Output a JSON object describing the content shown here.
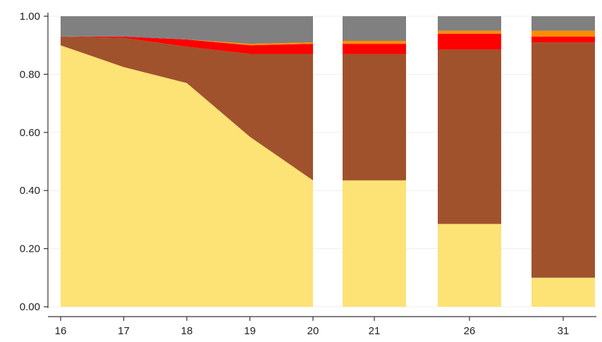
{
  "chart_data": {
    "type": "area",
    "ylim": [
      0,
      1
    ],
    "yticks": [
      0,
      0.2,
      0.4,
      0.6,
      0.8,
      1.0
    ],
    "ytick_labels": [
      "0.00",
      "0.20",
      "0.40",
      "0.60",
      "0.80",
      "1.00"
    ],
    "xlabel": "",
    "ylabel": "",
    "grid": true,
    "series_colors": [
      "#FDE275",
      "#A0522D",
      "#FF0000",
      "#FF8C00",
      "#808080"
    ],
    "area_panel": {
      "x": [
        16,
        17,
        18,
        19,
        20
      ],
      "x_labels": [
        "16",
        "17",
        "18",
        "19",
        "20"
      ],
      "stacks": [
        [
          0.9,
          0.825,
          0.77,
          0.585,
          0.435
        ],
        [
          0.03,
          0.1,
          0.125,
          0.285,
          0.435
        ],
        [
          0.0,
          0.005,
          0.025,
          0.03,
          0.035
        ],
        [
          0.0,
          0.0,
          0.0,
          0.005,
          0.005
        ],
        [
          0.07,
          0.07,
          0.08,
          0.095,
          0.09
        ]
      ]
    },
    "bars": {
      "categories": [
        "21",
        "26",
        "31"
      ],
      "stacks": [
        [
          0.435,
          0.285,
          0.1
        ],
        [
          0.435,
          0.6,
          0.81
        ],
        [
          0.035,
          0.055,
          0.02
        ],
        [
          0.01,
          0.01,
          0.02
        ],
        [
          0.085,
          0.05,
          0.05
        ]
      ]
    }
  }
}
